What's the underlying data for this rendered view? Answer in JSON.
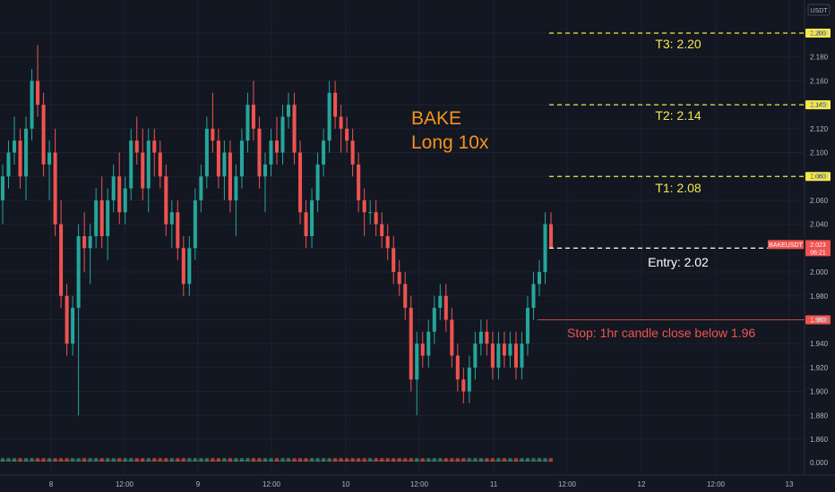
{
  "chart_data": {
    "type": "candlestick",
    "symbol": "BAKEUSDT",
    "currency": "USDT",
    "price_axis": {
      "ticks": [
        2.2,
        2.18,
        2.16,
        2.14,
        2.12,
        2.1,
        2.08,
        2.06,
        2.04,
        2.02,
        2.0,
        1.98,
        1.96,
        1.94,
        1.92,
        1.9,
        1.88,
        1.86
      ],
      "range": [
        1.845,
        2.215
      ]
    },
    "time_axis": {
      "labels": [
        "8",
        "12:00",
        "9",
        "12:00",
        "10",
        "12:00",
        "11",
        "12:00",
        "12",
        "12:00",
        "13"
      ]
    },
    "levels": [
      {
        "name": "T3",
        "price": 2.2,
        "label": "T3: 2.20",
        "tag": "2.200",
        "color": "#f5e94a"
      },
      {
        "name": "T2",
        "price": 2.14,
        "label": "T2: 2.14",
        "tag": "2.140",
        "color": "#f5e94a"
      },
      {
        "name": "T1",
        "price": 2.08,
        "label": "T1: 2.08",
        "tag": "2.080",
        "color": "#f5e94a"
      },
      {
        "name": "Entry",
        "price": 2.02,
        "label": "Entry: 2.02",
        "tag": "2.020",
        "color": "#ffffff"
      },
      {
        "name": "Stop",
        "price": 1.96,
        "label": "Stop: 1hr candle close below 1.96",
        "tag": "1.960",
        "color": "#ef5350"
      }
    ],
    "annotation": {
      "line1": "BAKE",
      "line2": "Long 10x",
      "color": "#f7931a"
    },
    "last_price": {
      "symbol": "BAKEUSDT",
      "price": "2.023",
      "countdown": "06:21"
    },
    "volume_axis_label": "0.000",
    "candles": [
      [
        2.06,
        2.09,
        2.04,
        2.08
      ],
      [
        2.08,
        2.11,
        2.07,
        2.1
      ],
      [
        2.1,
        2.13,
        2.09,
        2.11
      ],
      [
        2.11,
        2.12,
        2.07,
        2.08
      ],
      [
        2.08,
        2.13,
        2.06,
        2.12
      ],
      [
        2.12,
        2.17,
        2.11,
        2.16
      ],
      [
        2.16,
        2.19,
        2.13,
        2.14
      ],
      [
        2.14,
        2.15,
        2.08,
        2.09
      ],
      [
        2.09,
        2.11,
        2.06,
        2.1
      ],
      [
        2.1,
        2.12,
        2.03,
        2.04
      ],
      [
        2.04,
        2.06,
        1.97,
        1.98
      ],
      [
        1.98,
        1.99,
        1.93,
        1.94
      ],
      [
        1.94,
        1.98,
        1.93,
        1.97
      ],
      [
        1.97,
        2.04,
        1.88,
        2.03
      ],
      [
        2.03,
        2.05,
        2.0,
        2.02
      ],
      [
        2.02,
        2.04,
        1.99,
        2.03
      ],
      [
        2.03,
        2.07,
        2.02,
        2.06
      ],
      [
        2.06,
        2.08,
        2.02,
        2.03
      ],
      [
        2.03,
        2.07,
        2.01,
        2.06
      ],
      [
        2.06,
        2.09,
        2.05,
        2.08
      ],
      [
        2.08,
        2.1,
        2.04,
        2.05
      ],
      [
        2.05,
        2.08,
        2.04,
        2.07
      ],
      [
        2.07,
        2.12,
        2.06,
        2.11
      ],
      [
        2.11,
        2.13,
        2.09,
        2.1
      ],
      [
        2.1,
        2.12,
        2.06,
        2.07
      ],
      [
        2.07,
        2.12,
        2.05,
        2.11
      ],
      [
        2.11,
        2.12,
        2.08,
        2.1
      ],
      [
        2.1,
        2.11,
        2.07,
        2.08
      ],
      [
        2.08,
        2.09,
        2.03,
        2.04
      ],
      [
        2.04,
        2.06,
        2.02,
        2.05
      ],
      [
        2.05,
        2.06,
        2.01,
        2.02
      ],
      [
        2.02,
        2.03,
        1.98,
        1.99
      ],
      [
        1.99,
        2.03,
        1.98,
        2.02
      ],
      [
        2.02,
        2.07,
        2.01,
        2.06
      ],
      [
        2.06,
        2.09,
        2.05,
        2.08
      ],
      [
        2.08,
        2.13,
        2.07,
        2.12
      ],
      [
        2.12,
        2.15,
        2.1,
        2.11
      ],
      [
        2.11,
        2.12,
        2.07,
        2.08
      ],
      [
        2.08,
        2.11,
        2.06,
        2.1
      ],
      [
        2.1,
        2.11,
        2.05,
        2.06
      ],
      [
        2.06,
        2.09,
        2.03,
        2.08
      ],
      [
        2.08,
        2.12,
        2.07,
        2.11
      ],
      [
        2.11,
        2.15,
        2.1,
        2.14
      ],
      [
        2.14,
        2.16,
        2.11,
        2.12
      ],
      [
        2.12,
        2.13,
        2.07,
        2.08
      ],
      [
        2.08,
        2.1,
        2.05,
        2.09
      ],
      [
        2.09,
        2.12,
        2.08,
        2.11
      ],
      [
        2.11,
        2.13,
        2.09,
        2.1
      ],
      [
        2.1,
        2.14,
        2.09,
        2.13
      ],
      [
        2.13,
        2.15,
        2.12,
        2.14
      ],
      [
        2.14,
        2.15,
        2.09,
        2.1
      ],
      [
        2.1,
        2.11,
        2.04,
        2.05
      ],
      [
        2.05,
        2.06,
        2.02,
        2.03
      ],
      [
        2.03,
        2.07,
        2.02,
        2.06
      ],
      [
        2.06,
        2.1,
        2.05,
        2.09
      ],
      [
        2.09,
        2.12,
        2.08,
        2.11
      ],
      [
        2.11,
        2.16,
        2.1,
        2.15
      ],
      [
        2.15,
        2.16,
        2.12,
        2.13
      ],
      [
        2.13,
        2.14,
        2.1,
        2.12
      ],
      [
        2.12,
        2.13,
        2.1,
        2.11
      ],
      [
        2.11,
        2.12,
        2.08,
        2.09
      ],
      [
        2.09,
        2.1,
        2.05,
        2.06
      ],
      [
        2.06,
        2.07,
        2.03,
        2.05
      ],
      [
        2.05,
        2.06,
        2.04,
        2.05
      ],
      [
        2.05,
        2.06,
        2.03,
        2.04
      ],
      [
        2.04,
        2.05,
        2.02,
        2.03
      ],
      [
        2.03,
        2.04,
        2.01,
        2.02
      ],
      [
        2.02,
        2.03,
        1.99,
        2.0
      ],
      [
        2.0,
        2.01,
        1.98,
        1.99
      ],
      [
        1.99,
        2.0,
        1.96,
        1.97
      ],
      [
        1.97,
        1.98,
        1.9,
        1.91
      ],
      [
        1.91,
        1.95,
        1.88,
        1.94
      ],
      [
        1.94,
        1.95,
        1.92,
        1.93
      ],
      [
        1.93,
        1.96,
        1.92,
        1.95
      ],
      [
        1.95,
        1.98,
        1.94,
        1.97
      ],
      [
        1.97,
        1.99,
        1.96,
        1.98
      ],
      [
        1.98,
        1.99,
        1.95,
        1.96
      ],
      [
        1.96,
        1.97,
        1.92,
        1.93
      ],
      [
        1.93,
        1.94,
        1.9,
        1.91
      ],
      [
        1.91,
        1.92,
        1.89,
        1.9
      ],
      [
        1.9,
        1.93,
        1.89,
        1.92
      ],
      [
        1.92,
        1.95,
        1.91,
        1.94
      ],
      [
        1.94,
        1.96,
        1.93,
        1.95
      ],
      [
        1.95,
        1.96,
        1.93,
        1.94
      ],
      [
        1.94,
        1.95,
        1.91,
        1.92
      ],
      [
        1.92,
        1.95,
        1.91,
        1.94
      ],
      [
        1.94,
        1.95,
        1.92,
        1.93
      ],
      [
        1.93,
        1.95,
        1.92,
        1.94
      ],
      [
        1.94,
        1.95,
        1.91,
        1.92
      ],
      [
        1.92,
        1.95,
        1.91,
        1.94
      ],
      [
        1.94,
        1.98,
        1.93,
        1.97
      ],
      [
        1.97,
        2.0,
        1.96,
        1.99
      ],
      [
        1.99,
        2.01,
        1.98,
        2.0
      ],
      [
        2.0,
        2.05,
        1.99,
        2.04
      ],
      [
        2.04,
        2.05,
        2.02,
        2.02
      ]
    ]
  }
}
